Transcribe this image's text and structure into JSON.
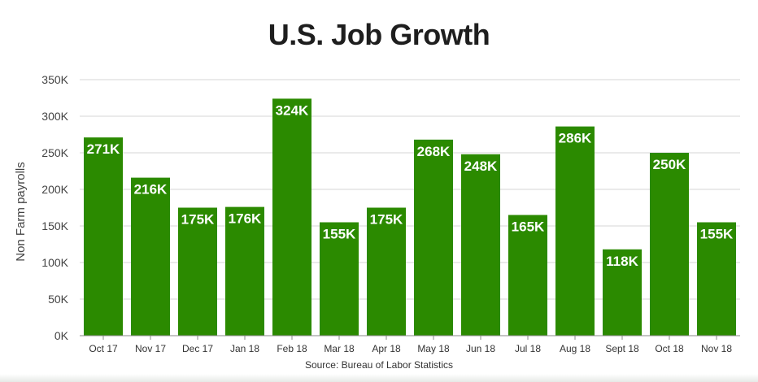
{
  "title": "U.S. Job Growth",
  "source": "Source: Bureau of Labor Statistics",
  "colors": {
    "bar": "#2b8a00",
    "grid": "#d6d6d6",
    "axis": "#8a8a8a"
  },
  "chart_data": {
    "type": "bar",
    "title": "U.S. Job Growth",
    "xlabel": "",
    "ylabel": "Non Farm payrolls",
    "ylim": [
      0,
      350
    ],
    "yticks": [
      0,
      50,
      100,
      150,
      200,
      250,
      300,
      350
    ],
    "ytick_labels": [
      "0K",
      "50K",
      "100K",
      "150K",
      "200K",
      "250K",
      "300K",
      "350K"
    ],
    "grid": true,
    "categories": [
      "Oct 17",
      "Nov 17",
      "Dec 17",
      "Jan 18",
      "Feb 18",
      "Mar 18",
      "Apr 18",
      "May 18",
      "Jun 18",
      "Jul 18",
      "Aug 18",
      "Sept 18",
      "Oct 18",
      "Nov 18"
    ],
    "values": [
      271,
      216,
      175,
      176,
      324,
      155,
      175,
      268,
      248,
      165,
      286,
      118,
      250,
      155
    ],
    "data_labels": [
      "271K",
      "216K",
      "175K",
      "176K",
      "324K",
      "155K",
      "175K",
      "268K",
      "248K",
      "165K",
      "286K",
      "118K",
      "250K",
      "155K"
    ]
  }
}
